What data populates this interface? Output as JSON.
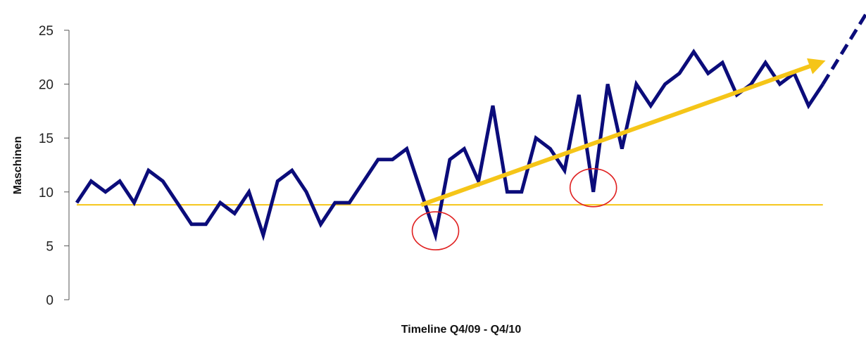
{
  "chart_data": {
    "type": "line",
    "title": "",
    "xlabel": "Timeline Q4/09 - Q4/10",
    "ylabel": "Maschinen",
    "ylim": [
      0,
      25
    ],
    "yticks": [
      0,
      5,
      10,
      15,
      20,
      25
    ],
    "x": [
      1,
      2,
      3,
      4,
      5,
      6,
      7,
      8,
      9,
      10,
      11,
      12,
      13,
      14,
      15,
      16,
      17,
      18,
      19,
      20,
      21,
      22,
      23,
      24,
      25,
      26,
      27,
      28,
      29,
      30,
      31,
      32,
      33,
      34,
      35,
      36,
      37,
      38,
      39,
      40,
      41,
      42,
      43,
      44,
      45,
      46,
      47,
      48,
      49,
      50,
      51,
      52,
      53
    ],
    "series": [
      {
        "values": [
          9,
          11,
          10,
          11,
          9,
          12,
          11,
          9,
          7,
          7,
          9,
          8,
          10,
          6,
          11,
          12,
          10,
          7,
          9,
          9,
          11,
          13,
          13,
          14,
          10,
          6,
          13,
          14,
          11,
          18,
          10,
          10,
          15,
          14,
          12,
          19,
          10,
          20,
          14,
          20,
          18,
          20,
          21,
          23,
          21,
          22,
          19,
          20,
          22,
          20,
          21,
          18,
          20
        ],
        "color": "#0b0c7a"
      }
    ],
    "projection": {
      "from": [
        53,
        20
      ],
      "to": [
        56,
        26.5
      ],
      "color": "#0b0c7a",
      "style": "dashed"
    },
    "annotations": {
      "baseline": {
        "y": 8.8,
        "x_from": 1,
        "x_to": 53,
        "color": "#f5c518"
      },
      "trend_arrow": {
        "from": [
          25,
          8.8
        ],
        "to": [
          52.8,
          22
        ],
        "color": "#f5c518"
      },
      "circles": [
        {
          "x": 26,
          "y": 6,
          "color": "#e02020"
        },
        {
          "x": 37,
          "y": 10,
          "color": "#e02020"
        }
      ]
    },
    "grid": false,
    "legend": "none"
  }
}
